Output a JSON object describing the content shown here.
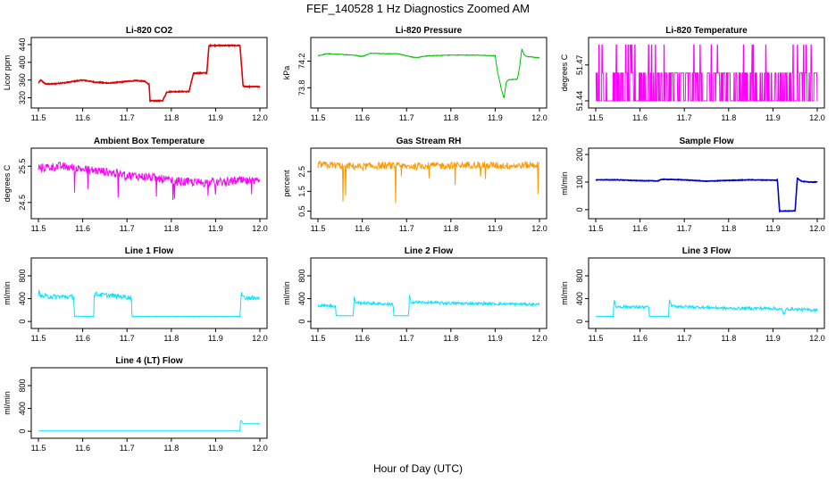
{
  "title": "FEF_140528 1 Hz Diagnostics Zoomed AM",
  "xlabel": "Hour of Day (UTC)",
  "chart_data": [
    {
      "type": "line",
      "title": "Li-820 CO2",
      "ylabel": "Licor ppm",
      "color": "#e00000",
      "xlim": [
        11.5,
        12.0
      ],
      "ylim": [
        305,
        448
      ],
      "xticks": [
        "11.5",
        "11.6",
        "11.7",
        "11.8",
        "11.9",
        "12.0"
      ],
      "yticks": [
        320,
        360,
        400,
        440
      ],
      "series": [
        {
          "x": [
            11.5,
            11.505,
            11.51,
            11.515,
            11.52,
            11.54,
            11.56,
            11.58,
            11.6,
            11.63,
            11.66,
            11.69,
            11.72,
            11.74,
            11.75,
            11.752,
            11.78,
            11.79,
            11.8,
            11.83,
            11.84,
            11.85,
            11.87,
            11.88,
            11.885,
            11.92,
            11.955,
            11.962,
            11.97,
            12.0
          ],
          "y": [
            353,
            360,
            356,
            352,
            351,
            352,
            354,
            357,
            360,
            355,
            353,
            356,
            359,
            357,
            350,
            313,
            313,
            333,
            334,
            334,
            334,
            375,
            376,
            376,
            438,
            438,
            438,
            346,
            345,
            345
          ]
        }
      ]
    },
    {
      "type": "line",
      "title": "Li-820 Pressure",
      "ylabel": "kPa",
      "color": "#00c000",
      "xlim": [
        11.5,
        12.0
      ],
      "ylim": [
        73.55,
        74.5
      ],
      "xticks": [
        "11.5",
        "11.6",
        "11.7",
        "11.8",
        "11.9",
        "12.0"
      ],
      "yticks": [
        73.8,
        74.2
      ],
      "series": [
        {
          "x": [
            11.5,
            11.52,
            11.55,
            11.58,
            11.6,
            11.62,
            11.65,
            11.68,
            11.7,
            11.72,
            11.75,
            11.8,
            11.85,
            11.9,
            11.905,
            11.915,
            11.92,
            11.925,
            11.93,
            11.95,
            11.955,
            11.96,
            11.965,
            11.97,
            12.0
          ],
          "y": [
            74.28,
            74.31,
            74.3,
            74.29,
            74.27,
            74.32,
            74.31,
            74.31,
            74.28,
            74.25,
            74.28,
            74.29,
            74.29,
            74.28,
            74.05,
            73.75,
            73.65,
            73.88,
            73.92,
            73.93,
            74.1,
            74.38,
            74.3,
            74.27,
            74.25
          ]
        }
      ]
    },
    {
      "type": "line",
      "title": "Li-820 Temperature",
      "ylabel": "degrees C",
      "color": "#ff00ff",
      "xlim": [
        11.5,
        12.0
      ],
      "ylim": [
        51.437,
        51.49
      ],
      "xticks": [
        "11.5",
        "11.6",
        "11.7",
        "11.8",
        "11.9",
        "12.0"
      ],
      "yticks": [
        51.44,
        51.47
      ],
      "levels": [
        51.44,
        51.4633,
        51.4867
      ],
      "series": [
        {
          "name": "",
          "values": []
        }
      ]
    },
    {
      "type": "line",
      "title": "Ambient Box Temperature",
      "ylabel": "degrees C",
      "color": "#ff00ff",
      "xlim": [
        11.5,
        12.0
      ],
      "ylim": [
        24.15,
        25.9
      ],
      "xticks": [
        "11.5",
        "11.6",
        "11.7",
        "11.8",
        "11.9",
        "12.0"
      ],
      "yticks": [
        24.5,
        25.5
      ],
      "series": [
        {
          "x": [
            11.5,
            11.55,
            11.6,
            11.65,
            11.7,
            11.75,
            11.8,
            11.85,
            11.9,
            11.95,
            12.0
          ],
          "y": [
            25.45,
            25.5,
            25.42,
            25.35,
            25.25,
            25.2,
            25.1,
            25.05,
            25.05,
            25.1,
            25.05
          ]
        }
      ]
    },
    {
      "type": "line",
      "title": "Gas Stream RH",
      "ylabel": "percent",
      "color": "#ff9900",
      "xlim": [
        11.5,
        12.0
      ],
      "ylim": [
        0.3,
        3.5
      ],
      "xticks": [
        "11.5",
        "11.6",
        "11.7",
        "11.8",
        "11.9",
        "12.0"
      ],
      "yticks": [
        0.5,
        1.5,
        2.5
      ],
      "yticklabels": [
        "0.5",
        "1.5",
        "2.5"
      ],
      "series": [
        {
          "x": [
            11.5,
            11.55,
            11.6,
            11.65,
            11.7,
            11.75,
            11.8,
            11.85,
            11.9,
            11.95,
            12.0
          ],
          "y": [
            2.85,
            2.8,
            2.75,
            2.8,
            2.75,
            2.8,
            2.8,
            2.85,
            2.8,
            2.8,
            2.85
          ]
        }
      ]
    },
    {
      "type": "line",
      "title": "Sample Flow",
      "ylabel": "ml/min",
      "color": "#0000cc",
      "xlim": [
        11.5,
        12.0
      ],
      "ylim": [
        -20,
        210
      ],
      "xticks": [
        "11.5",
        "11.6",
        "11.7",
        "11.8",
        "11.9",
        "12.0"
      ],
      "yticks": [
        0,
        100,
        200
      ],
      "series": [
        {
          "x": [
            11.5,
            11.55,
            11.6,
            11.64,
            11.65,
            11.7,
            11.75,
            11.8,
            11.85,
            11.9,
            11.91,
            11.915,
            11.95,
            11.955,
            11.96,
            11.965,
            11.98,
            12.0
          ],
          "y": [
            108,
            108,
            105,
            104,
            110,
            108,
            103,
            106,
            108,
            107,
            107,
            -5,
            -5,
            115,
            108,
            103,
            100,
            100
          ]
        }
      ]
    },
    {
      "type": "line",
      "title": "Line 1 Flow",
      "ylabel": "ml/min",
      "color": "#00e5ff",
      "xlim": [
        11.5,
        12.0
      ],
      "ylim": [
        -60,
        1050
      ],
      "xticks": [
        "11.5",
        "11.6",
        "11.7",
        "11.8",
        "11.9",
        "12.0"
      ],
      "yticks": [
        0,
        400,
        800
      ],
      "series": [
        {
          "x": [
            11.5,
            11.502,
            11.505,
            11.58,
            11.581,
            11.625,
            11.626,
            11.71,
            11.711,
            11.955,
            11.958,
            11.962,
            12.0
          ],
          "y": [
            450,
            560,
            440,
            430,
            90,
            90,
            480,
            420,
            90,
            90,
            540,
            420,
            400
          ]
        }
      ]
    },
    {
      "type": "line",
      "title": "Line 2 Flow",
      "ylabel": "ml/min",
      "color": "#00e5ff",
      "xlim": [
        11.5,
        12.0
      ],
      "ylim": [
        -60,
        1050
      ],
      "xticks": [
        "11.5",
        "11.6",
        "11.7",
        "11.8",
        "11.9",
        "12.0"
      ],
      "yticks": [
        0,
        400,
        800
      ],
      "series": [
        {
          "x": [
            11.5,
            11.54,
            11.541,
            11.58,
            11.581,
            11.585,
            11.67,
            11.671,
            11.705,
            11.706,
            11.71,
            11.8,
            11.9,
            12.0
          ],
          "y": [
            280,
            270,
            100,
            100,
            430,
            330,
            300,
            100,
            100,
            450,
            340,
            320,
            310,
            300
          ]
        }
      ]
    },
    {
      "type": "line",
      "title": "Line 3 Flow",
      "ylabel": "ml/min",
      "color": "#00e5ff",
      "xlim": [
        11.5,
        12.0
      ],
      "ylim": [
        -60,
        1050
      ],
      "xticks": [
        "11.5",
        "11.6",
        "11.7",
        "11.8",
        "11.9",
        "12.0"
      ],
      "yticks": [
        0,
        400,
        800
      ],
      "series": [
        {
          "x": [
            11.5,
            11.54,
            11.541,
            11.545,
            11.62,
            11.621,
            11.665,
            11.666,
            11.67,
            11.8,
            11.9,
            11.92,
            11.925,
            11.93,
            12.0
          ],
          "y": [
            90,
            90,
            380,
            260,
            250,
            90,
            90,
            420,
            270,
            230,
            230,
            210,
            120,
            220,
            200
          ]
        }
      ]
    },
    {
      "type": "line",
      "title": "Line 4 (LT) Flow",
      "ylabel": "ml/min",
      "color": "#00e5ff",
      "xlim": [
        11.5,
        12.0
      ],
      "ylim": [
        -60,
        1050
      ],
      "xticks": [
        "11.5",
        "11.6",
        "11.7",
        "11.8",
        "11.9",
        "12.0"
      ],
      "yticks": [
        0,
        400,
        800
      ],
      "series": [
        {
          "x": [
            11.5,
            11.955,
            11.956,
            11.958,
            11.962,
            12.0
          ],
          "y": [
            5,
            5,
            170,
            190,
            130,
            130
          ]
        }
      ]
    }
  ]
}
